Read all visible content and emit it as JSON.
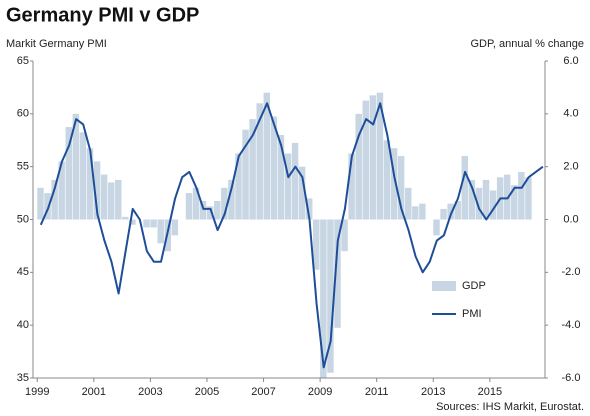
{
  "chart_data": {
    "type": "bar_line_dual",
    "title": "Germany PMI v GDP",
    "y_label": "Markit Germany PMI",
    "y2_label": "GDP, annual % change",
    "source": "Sources: IHS Markit, Eurostat.",
    "x": [
      1999,
      1999.25,
      1999.5,
      1999.75,
      2000,
      2000.25,
      2000.5,
      2000.75,
      2001,
      2001.25,
      2001.5,
      2001.75,
      2002,
      2002.25,
      2002.5,
      2002.75,
      2003,
      2003.25,
      2003.5,
      2003.75,
      2004,
      2004.25,
      2004.5,
      2004.75,
      2005,
      2005.25,
      2005.5,
      2005.75,
      2006,
      2006.25,
      2006.5,
      2006.75,
      2007,
      2007.25,
      2007.5,
      2007.75,
      2008,
      2008.25,
      2008.5,
      2008.75,
      2009,
      2009.25,
      2009.5,
      2009.75,
      2010,
      2010.25,
      2010.5,
      2010.75,
      2011,
      2011.25,
      2011.5,
      2011.75,
      2012,
      2012.25,
      2012.5,
      2012.75,
      2013,
      2013.25,
      2013.5,
      2013.75,
      2014,
      2014.25,
      2014.5,
      2014.75,
      2015,
      2015.25,
      2015.5,
      2015.75,
      2016,
      2016.25,
      2016.5,
      2016.75
    ],
    "series": [
      {
        "name": "GDP",
        "kind": "bar",
        "axis": "y2",
        "color": "#c8d6e3",
        "values": [
          1.2,
          1.0,
          1.5,
          2.2,
          3.5,
          4.0,
          3.3,
          2.7,
          2.2,
          1.7,
          1.4,
          1.5,
          0.1,
          -0.2,
          0.0,
          -0.3,
          -0.3,
          -0.9,
          -1.2,
          -0.6,
          0.0,
          1.0,
          1.2,
          0.7,
          0.5,
          0.7,
          1.2,
          1.5,
          2.5,
          3.4,
          3.8,
          4.4,
          4.8,
          3.9,
          3.2,
          2.5,
          2.9,
          2.0,
          0.8,
          -1.9,
          -6.0,
          -5.8,
          -4.1,
          -1.2,
          2.5,
          4.0,
          4.5,
          4.7,
          4.8,
          3.0,
          2.7,
          2.4,
          1.2,
          0.5,
          0.6,
          0.0,
          -0.6,
          0.4,
          0.6,
          0.7,
          2.4,
          1.5,
          1.2,
          1.5,
          1.1,
          1.6,
          1.7,
          1.3,
          1.8,
          1.6,
          null,
          null
        ]
      },
      {
        "name": "PMI",
        "kind": "line",
        "color": "#1f4e99",
        "values": [
          49.5,
          51,
          53,
          55.5,
          57,
          59.5,
          59,
          56.5,
          50.5,
          48,
          46,
          43,
          47,
          51,
          50,
          47,
          46,
          46,
          49,
          52,
          54,
          54.5,
          53,
          51,
          51,
          49,
          50.5,
          53,
          56,
          57,
          58,
          59.5,
          61,
          59,
          57,
          54,
          55,
          54,
          50,
          42,
          36,
          38.5,
          48,
          51,
          56,
          58,
          59.5,
          59,
          61,
          58,
          54,
          51,
          49,
          46.5,
          45,
          46,
          48,
          48.5,
          50.5,
          52,
          54.5,
          53,
          51,
          50,
          51,
          52,
          52,
          53,
          53,
          54,
          54.5,
          55
        ]
      }
    ],
    "xlim": [
      1998.85,
      2016.95
    ],
    "xticks": [
      1999,
      2001,
      2003,
      2005,
      2007,
      2009,
      2011,
      2013,
      2015
    ],
    "ylim": [
      35,
      65
    ],
    "yticks": [
      35,
      40,
      45,
      50,
      55,
      60,
      65
    ],
    "y2lim": [
      -6,
      6
    ],
    "y2ticks": [
      {
        "value": -6,
        "label": "-6.0"
      },
      {
        "value": -4,
        "label": "-4.0"
      },
      {
        "value": -2,
        "label": "-2.0"
      },
      {
        "value": 0,
        "label": "0.0"
      },
      {
        "value": 2,
        "label": "2.0"
      },
      {
        "value": 4,
        "label": "4.0"
      },
      {
        "value": 6,
        "label": "6.0"
      }
    ],
    "legend": "lower right",
    "grid": false
  }
}
